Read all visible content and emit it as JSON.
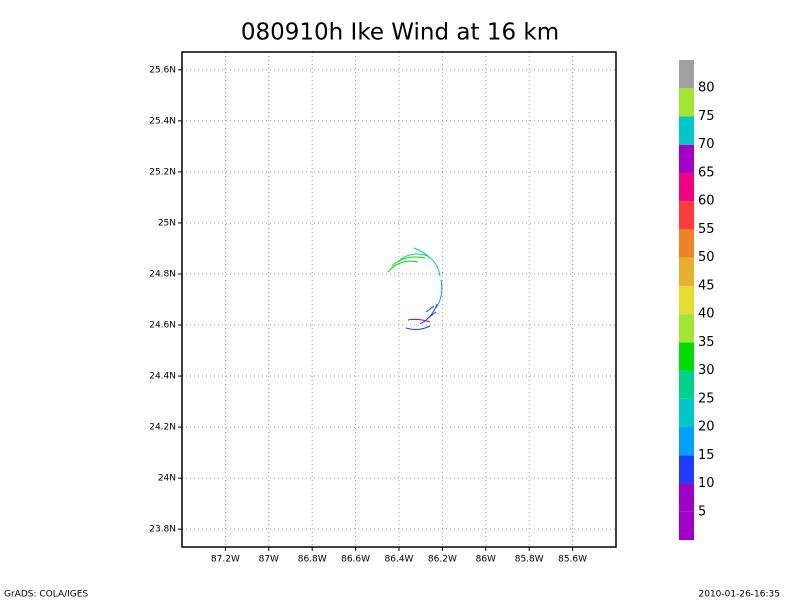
{
  "map": {
    "title": "080910h Ike Wind at 16 km",
    "xlim": [
      -87.4,
      -85.4
    ],
    "ylim": [
      23.73,
      25.67
    ],
    "xticks": [
      {
        "value": -87.2,
        "label": "87.2W"
      },
      {
        "value": -87.0,
        "label": "87W"
      },
      {
        "value": -86.8,
        "label": "86.8W"
      },
      {
        "value": -86.6,
        "label": "86.6W"
      },
      {
        "value": -86.4,
        "label": "86.4W"
      },
      {
        "value": -86.2,
        "label": "86.2W"
      },
      {
        "value": -86.0,
        "label": "86W"
      },
      {
        "value": -85.8,
        "label": "85.8W"
      },
      {
        "value": -85.6,
        "label": "85.6W"
      }
    ],
    "yticks": [
      {
        "value": 25.6,
        "label": "25.6N"
      },
      {
        "value": 25.4,
        "label": "25.4N"
      },
      {
        "value": 25.2,
        "label": "25.2N"
      },
      {
        "value": 25.0,
        "label": "25N"
      },
      {
        "value": 24.8,
        "label": "24.8N"
      },
      {
        "value": 24.6,
        "label": "24.6N"
      },
      {
        "value": 24.4,
        "label": "24.4N"
      },
      {
        "value": 24.2,
        "label": "24.2N"
      },
      {
        "value": 24.0,
        "label": "24N"
      },
      {
        "value": 23.8,
        "label": "23.8N"
      }
    ],
    "grid": true,
    "colorbar": {
      "levels": [
        5,
        10,
        15,
        20,
        25,
        30,
        35,
        40,
        45,
        50,
        55,
        60,
        65,
        70,
        75,
        80
      ],
      "colors": [
        "#a000c8",
        "#a000c8",
        "#1e3cff",
        "#00a0ff",
        "#00c8c8",
        "#00d28c",
        "#00dc00",
        "#a0e632",
        "#e6dc32",
        "#e6af2d",
        "#f08228",
        "#fa3c3c",
        "#f00082",
        "#a000c8",
        "#00c8c8",
        "#a0e632",
        "#a0a0a0"
      ]
    },
    "footer_left": "GrADS: COLA/IGES",
    "footer_right": "2010-01-26-16:35"
  }
}
